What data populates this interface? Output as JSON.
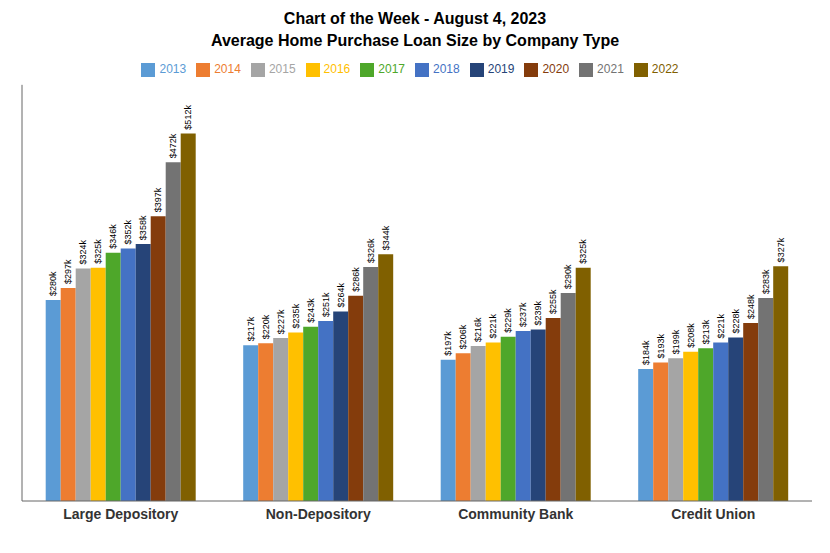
{
  "chart_data": {
    "type": "bar",
    "title": "Chart of the Week - August 4, 2023",
    "subtitle": "Average Home Purchase Loan Size by Company Type",
    "categories": [
      "Large Depository",
      "Non-Depository",
      "Community Bank",
      "Credit Union"
    ],
    "series": [
      {
        "name": "2013",
        "color": "#5B9BD5",
        "values": [
          280,
          217,
          197,
          184
        ],
        "value_labels": [
          "$280k",
          "$217k",
          "$197k",
          "$184k"
        ]
      },
      {
        "name": "2014",
        "color": "#ED7D31",
        "values": [
          297,
          220,
          206,
          193
        ],
        "value_labels": [
          "$297k",
          "$220k",
          "$206k",
          "$193k"
        ]
      },
      {
        "name": "2015",
        "color": "#A5A5A5",
        "values": [
          324,
          227,
          216,
          199
        ],
        "value_labels": [
          "$324k",
          "$227k",
          "$216k",
          "$199k"
        ]
      },
      {
        "name": "2016",
        "color": "#FFC000",
        "values": [
          325,
          235,
          221,
          208
        ],
        "value_labels": [
          "$325k",
          "$235k",
          "$221k",
          "$208k"
        ]
      },
      {
        "name": "2017",
        "color": "#4EA72A",
        "values": [
          346,
          243,
          229,
          213
        ],
        "value_labels": [
          "$346k",
          "$243k",
          "$229k",
          "$213k"
        ]
      },
      {
        "name": "2018",
        "color": "#4472C4",
        "values": [
          352,
          251,
          237,
          221
        ],
        "value_labels": [
          "$352k",
          "$251k",
          "$237k",
          "$221k"
        ]
      },
      {
        "name": "2019",
        "color": "#264478",
        "values": [
          358,
          264,
          239,
          228
        ],
        "value_labels": [
          "$358k",
          "$264k",
          "$239k",
          "$228k"
        ]
      },
      {
        "name": "2020",
        "color": "#843C0C",
        "values": [
          397,
          286,
          255,
          248
        ],
        "value_labels": [
          "$397k",
          "$286k",
          "$255k",
          "$248k"
        ]
      },
      {
        "name": "2021",
        "color": "#737373",
        "values": [
          472,
          326,
          290,
          283
        ],
        "value_labels": [
          "$472k",
          "$326k",
          "$290k",
          "$283k"
        ]
      },
      {
        "name": "2022",
        "color": "#806000",
        "values": [
          512,
          344,
          325,
          327
        ],
        "value_labels": [
          "$512k",
          "$344k",
          "$325k",
          "$327k"
        ]
      }
    ],
    "ylim": [
      0,
      580
    ],
    "grid": false,
    "legend": "top",
    "data_labels": true,
    "tick_labels": "x"
  }
}
